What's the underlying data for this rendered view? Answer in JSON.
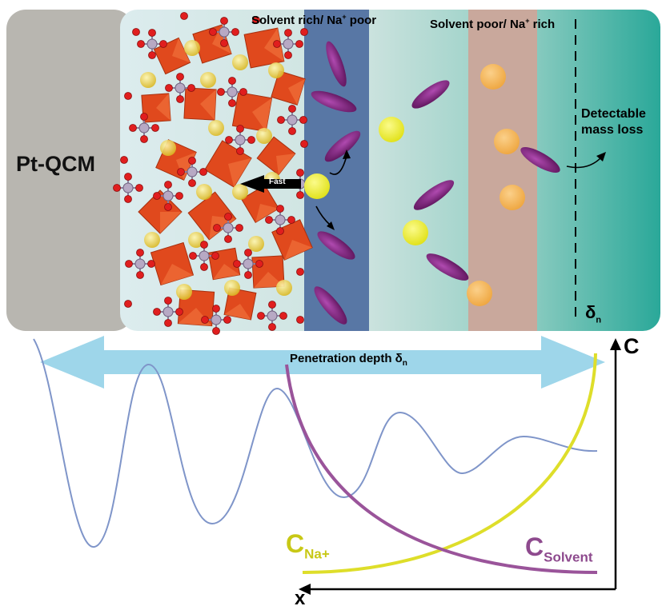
{
  "electrode": {
    "label": "Pt-QCM"
  },
  "regions": {
    "solvent_rich": {
      "text": "Solvent rich/ Na",
      "sup": "+",
      "suffix": " poor"
    },
    "solvent_poor": {
      "text": "Solvent poor/ Na",
      "sup": "+",
      "suffix": " rich"
    }
  },
  "annotations": {
    "fast": "Fast",
    "detectable_mass_loss": "Detectable mass loss",
    "delta": "δ",
    "delta_sub": "n",
    "penetration_depth": "Penetration depth δ",
    "penetration_sub": "n"
  },
  "axes": {
    "concentration": "C",
    "distance": "x"
  },
  "curves": {
    "sodium": {
      "label": "C",
      "sub": "Na+",
      "color": "#dede2a"
    },
    "solvent": {
      "label": "C",
      "sub": "Solvent",
      "color": "#9a549a"
    }
  },
  "colors": {
    "electrode": "#b8b6b0",
    "solution_left": "#dcecee",
    "solution_right": "#2aa899",
    "solvent_rich_band": "#5877a5",
    "solvent_poor_band": "#c9a89c",
    "solvent_molecule": "#8a2a88",
    "sodium_ion": "#ecec1e",
    "sodium_ion_outer": "#f3b148",
    "penetration_arrow": "#9ed6ea",
    "wave": "#7f95c9"
  }
}
